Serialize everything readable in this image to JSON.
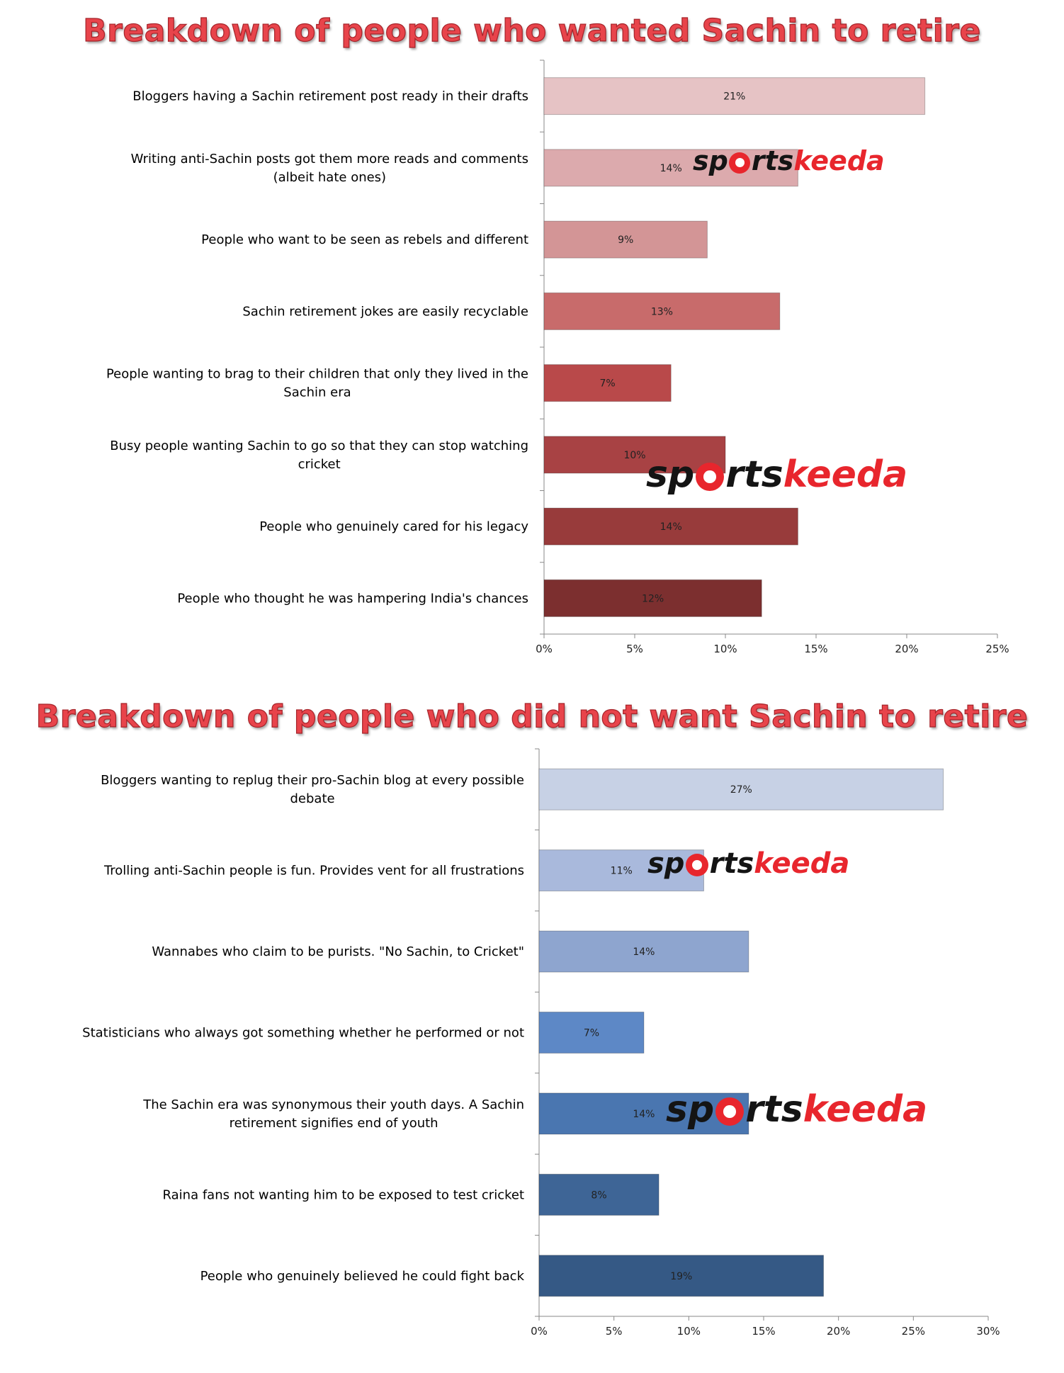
{
  "chart_data": [
    {
      "type": "bar",
      "orientation": "horizontal",
      "title": "Breakdown of people who wanted Sachin to retire",
      "categories": [
        "Bloggers having a Sachin retirement post ready in their drafts",
        "Writing anti-Sachin posts got them more reads and comments (albeit hate ones)",
        "People who want to be seen as rebels and different",
        "Sachin retirement jokes are easily recyclable",
        "People wanting to brag to their children that only they lived in the Sachin era",
        "Busy people wanting Sachin to go so that they can stop watching cricket",
        "People who genuinely cared for his legacy",
        "People who thought he was hampering India's chances"
      ],
      "category_lines": [
        [
          "Bloggers having a Sachin retirement post ready in their drafts"
        ],
        [
          "Writing anti-Sachin posts got them more reads and comments",
          "(albeit hate ones)"
        ],
        [
          "People who want to be seen as rebels and different"
        ],
        [
          "Sachin retirement jokes are easily recyclable"
        ],
        [
          "People wanting to brag to their children that only they lived in the",
          "Sachin era"
        ],
        [
          "Busy people wanting Sachin to go so that they can stop watching",
          "cricket"
        ],
        [
          "People who genuinely cared for his legacy"
        ],
        [
          "People who thought he was hampering India's chances"
        ]
      ],
      "values": [
        21,
        14,
        9,
        13,
        7,
        10,
        14,
        12
      ],
      "data_labels": [
        "21%",
        "14%",
        "9%",
        "13%",
        "7%",
        "10%",
        "14%",
        "12%"
      ],
      "colors": [
        "#e6c3c5",
        "#dcaaad",
        "#d39596",
        "#c86b6b",
        "#b9494a",
        "#a84244",
        "#983b3b",
        "#7c2f2f"
      ],
      "xlim": [
        0,
        25
      ],
      "xticks": [
        "0%",
        "5%",
        "10%",
        "15%",
        "20%",
        "25%"
      ],
      "xlabel": "",
      "ylabel": "",
      "grid": false,
      "legend": "none"
    },
    {
      "type": "bar",
      "orientation": "horizontal",
      "title": "Breakdown of people who did not want Sachin to retire",
      "categories": [
        "Bloggers wanting to replug their pro-Sachin blog at every possible debate",
        "Trolling anti-Sachin people is fun. Provides vent for all frustrations",
        "Wannabes who claim to be purists. \"No Sachin, to Cricket\"",
        "Statisticians who always got something whether he performed or not",
        "The Sachin era was synonymous their youth days. A Sachin retirement signifies end of youth",
        "Raina fans not wanting him to be exposed to test cricket",
        "People who genuinely believed he could fight back"
      ],
      "category_lines": [
        [
          "Bloggers wanting to replug their pro-Sachin blog at every possible",
          "debate"
        ],
        [
          "Trolling anti-Sachin people is fun. Provides vent for all frustrations"
        ],
        [
          "Wannabes who claim to be purists. \"No Sachin, to Cricket\""
        ],
        [
          "Statisticians who always got something whether he performed or not"
        ],
        [
          "The Sachin era was synonymous their youth days. A Sachin",
          "retirement signifies end of youth"
        ],
        [
          "Raina fans not wanting him to be exposed to test cricket"
        ],
        [
          "People who genuinely believed he could fight back"
        ]
      ],
      "values": [
        27,
        11,
        14,
        7,
        14,
        8,
        19
      ],
      "data_labels": [
        "27%",
        "11%",
        "14%",
        "7%",
        "14%",
        "8%",
        "19%"
      ],
      "colors": [
        "#c7d1e5",
        "#a9b9dc",
        "#8ea5cf",
        "#5d88c6",
        "#4a76b0",
        "#3e6596",
        "#355985"
      ],
      "xlim": [
        0,
        30
      ],
      "xticks": [
        "0%",
        "5%",
        "10%",
        "15%",
        "20%",
        "25%",
        "30%"
      ],
      "xlabel": "",
      "ylabel": "",
      "grid": false,
      "legend": "none"
    }
  ],
  "watermark": {
    "text_a": "sp",
    "text_b": "rts",
    "text_c": "keeda"
  }
}
